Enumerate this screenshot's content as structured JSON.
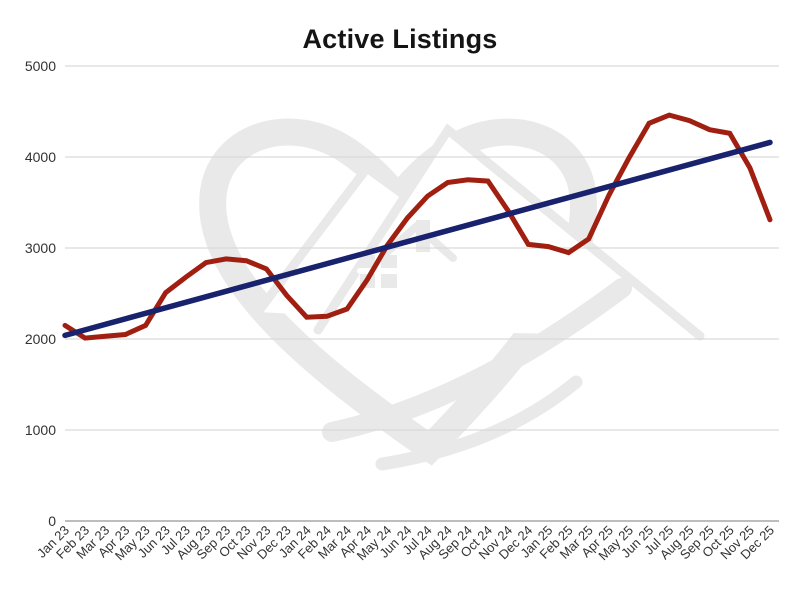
{
  "chart_data": {
    "type": "line",
    "title": "Active Listings",
    "xlabel": "",
    "ylabel": "",
    "ylim": [
      0,
      5000
    ],
    "yticks": [
      0,
      1000,
      2000,
      3000,
      4000,
      5000
    ],
    "grid": "horizontal",
    "legend": "none",
    "x_label_rotation": -45,
    "categories": [
      "Jan 23",
      "Feb 23",
      "Mar 23",
      "Apr 23",
      "May 23",
      "Jun 23",
      "Jul 23",
      "Aug 23",
      "Sep 23",
      "Oct 23",
      "Nov 23",
      "Dec 23",
      "Jan 24",
      "Feb 24",
      "Mar 24",
      "Apr 24",
      "May 24",
      "Jun 24",
      "Jul 24",
      "Aug 24",
      "Sep 24",
      "Oct 24",
      "Nov 24",
      "Dec 24",
      "Jan 25",
      "Feb 25",
      "Mar 25",
      "Apr 25",
      "May 25",
      "Jun 25",
      "Jul 25",
      "Aug 25",
      "Sep 25",
      "Oct 25",
      "Nov 25",
      "Dec 25"
    ],
    "series": [
      {
        "name": "Active Listings",
        "kind": "data",
        "color": "#A01F10",
        "values": [
          2150,
          2010,
          2030,
          2050,
          2150,
          2510,
          2680,
          2840,
          2880,
          2860,
          2770,
          2480,
          2240,
          2250,
          2330,
          2650,
          3030,
          3330,
          3570,
          3720,
          3750,
          3735,
          3410,
          3040,
          3015,
          2950,
          3100,
          3580,
          3990,
          4370,
          4460,
          4400,
          4300,
          4260,
          3880,
          3310
        ]
      },
      {
        "name": "Trend",
        "kind": "trend",
        "color": "#18226D",
        "values": [
          2040,
          4160
        ]
      }
    ]
  }
}
